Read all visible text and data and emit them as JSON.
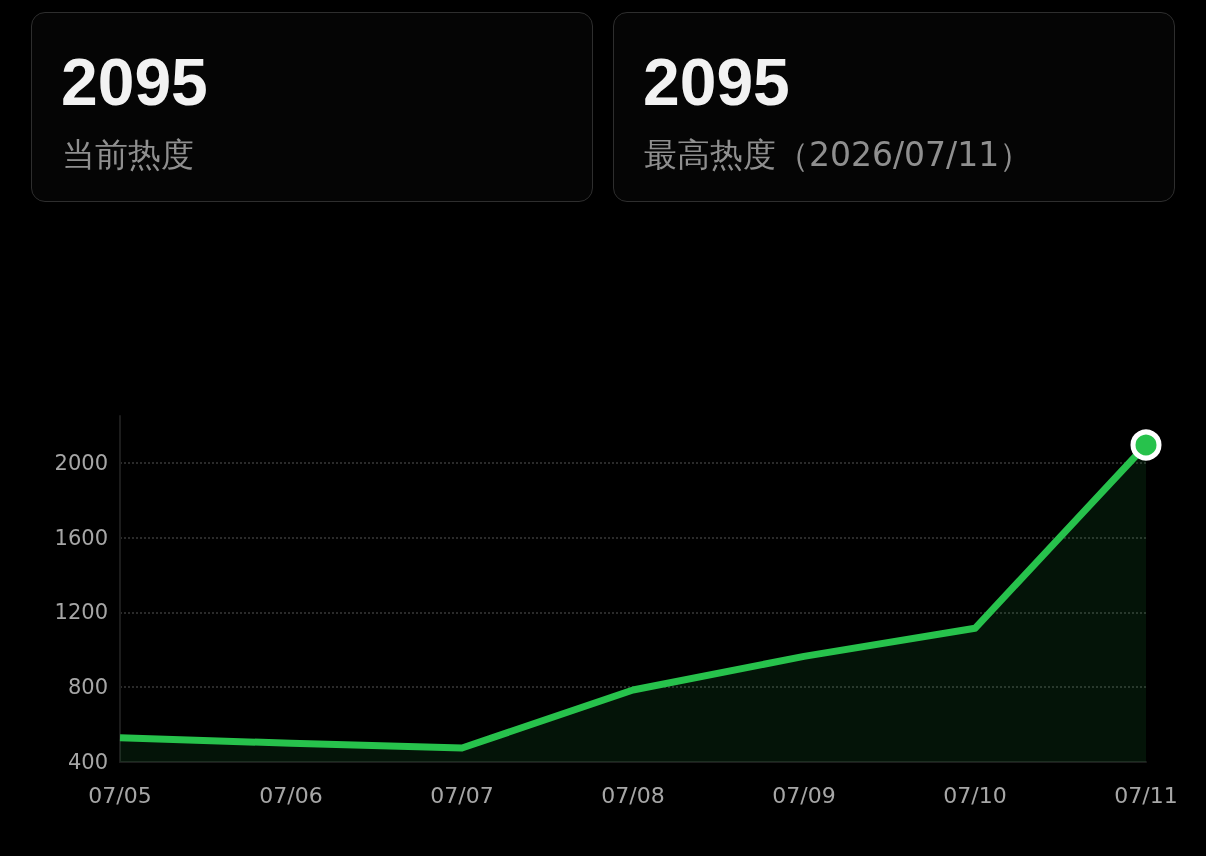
{
  "chart_data": [
    {
      "type": "other",
      "title": "2095",
      "subtitle": "当前热度"
    },
    {
      "type": "other",
      "title": "2095",
      "subtitle": "最高热度（2026/07/11）"
    },
    {
      "type": "area",
      "categories": [
        "07/05",
        "07/06",
        "07/07",
        "07/08",
        "07/09",
        "07/10",
        "07/11"
      ],
      "series": [
        {
          "color": "#27c24c",
          "values": [
            530,
            500,
            475,
            785,
            965,
            1115,
            2095
          ]
        },
        {
          "type": "scatter",
          "color": "#27c24c",
          "marker": "circle",
          "values": [
            null,
            null,
            null,
            null,
            null,
            null,
            2095
          ]
        }
      ],
      "marker": "none",
      "ylim": [
        400,
        2250
      ],
      "yticks": [
        400,
        800,
        1200,
        1600,
        2000
      ],
      "grid": "y"
    }
  ]
}
